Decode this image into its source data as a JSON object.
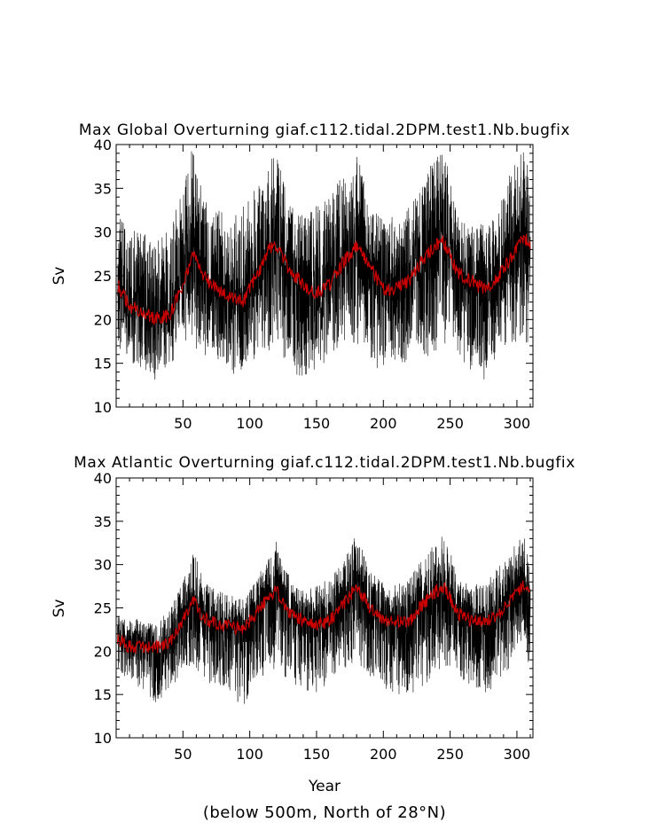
{
  "figure": {
    "footnote": "(below 500m, North of 28°N)"
  },
  "chart_data": [
    {
      "type": "line",
      "title": "Max Global Overturning giaf.c112.tidal.2DPM.test1.Nb.bugfix",
      "xlabel": "",
      "ylabel": "Sv",
      "xlim": [
        0,
        312
      ],
      "ylim": [
        10,
        40
      ],
      "xticks": [
        50,
        100,
        150,
        200,
        250,
        300
      ],
      "yticks": [
        10,
        15,
        20,
        25,
        30,
        35,
        40
      ],
      "series": [
        {
          "name": "raw",
          "color": "#000000",
          "x": [
            1,
            10,
            20,
            30,
            40,
            50,
            57,
            65,
            75,
            85,
            95,
            105,
            115,
            120,
            130,
            140,
            150,
            160,
            170,
            180,
            190,
            200,
            210,
            220,
            230,
            240,
            245,
            255,
            265,
            275,
            285,
            295,
            305,
            310
          ],
          "upper": [
            32,
            30.5,
            30,
            29,
            30.5,
            36,
            40,
            34,
            33,
            32,
            33,
            35.5,
            38,
            40,
            33,
            32,
            33,
            34,
            37,
            39.5,
            33,
            31.5,
            32,
            33,
            37,
            39,
            40,
            32,
            31,
            31,
            33,
            37,
            40,
            36
          ],
          "lower": [
            17,
            15,
            14.5,
            13,
            15,
            16,
            17,
            16,
            15.5,
            13.5,
            14,
            15.5,
            16.5,
            17,
            14.5,
            13,
            14,
            15.5,
            17.5,
            16.5,
            15.5,
            13.5,
            15,
            15,
            15.5,
            16.5,
            17,
            16,
            14,
            13,
            15.5,
            17,
            18,
            16
          ]
        },
        {
          "name": "mean",
          "color": "#cc0000",
          "x": [
            1,
            10,
            20,
            30,
            40,
            50,
            57,
            65,
            75,
            85,
            95,
            105,
            115,
            120,
            130,
            140,
            150,
            160,
            170,
            180,
            190,
            200,
            210,
            220,
            230,
            240,
            245,
            255,
            265,
            275,
            285,
            295,
            305,
            310
          ],
          "values": [
            24,
            21.5,
            21,
            20,
            20.5,
            24,
            27.5,
            25,
            23.5,
            22.5,
            22,
            25,
            28,
            28.5,
            25.5,
            24,
            23,
            24,
            26.5,
            28.5,
            26,
            23.5,
            23.5,
            24.5,
            27,
            28.5,
            29,
            25.5,
            24.5,
            23.5,
            24.5,
            27,
            29.5,
            28.5
          ]
        }
      ]
    },
    {
      "type": "line",
      "title": "Max Atlantic Overturning giaf.c112.tidal.2DPM.test1.Nb.bugfix",
      "xlabel": "Year",
      "ylabel": "Sv",
      "xlim": [
        0,
        312
      ],
      "ylim": [
        10,
        40
      ],
      "xticks": [
        50,
        100,
        150,
        200,
        250,
        300
      ],
      "yticks": [
        10,
        15,
        20,
        25,
        30,
        35,
        40
      ],
      "series": [
        {
          "name": "raw",
          "color": "#000000",
          "x": [
            1,
            10,
            20,
            30,
            40,
            50,
            57,
            65,
            75,
            85,
            95,
            105,
            115,
            120,
            130,
            140,
            150,
            160,
            170,
            180,
            190,
            200,
            210,
            220,
            230,
            240,
            245,
            255,
            265,
            275,
            285,
            295,
            305,
            310
          ],
          "upper": [
            24,
            24,
            23.5,
            23,
            25,
            28,
            32,
            28.5,
            27,
            26.5,
            26,
            28.5,
            31,
            33,
            28.5,
            27,
            27.5,
            28.5,
            30.5,
            34,
            29.5,
            28,
            28,
            28.5,
            31,
            33,
            34,
            29,
            28,
            28,
            29.5,
            31.5,
            34,
            30
          ],
          "lower": [
            18,
            16.5,
            15.5,
            14,
            15.5,
            17.5,
            18.5,
            17,
            15.5,
            15,
            13.5,
            16.5,
            17.5,
            18,
            16.5,
            15.5,
            15,
            16.5,
            18,
            18.5,
            16.5,
            15.5,
            15,
            15,
            16,
            17.5,
            18,
            17,
            16,
            14.5,
            16.5,
            18,
            19,
            18.5
          ]
        },
        {
          "name": "mean",
          "color": "#cc0000",
          "x": [
            1,
            10,
            20,
            30,
            40,
            50,
            57,
            65,
            75,
            85,
            95,
            105,
            115,
            120,
            130,
            140,
            150,
            160,
            170,
            180,
            190,
            200,
            210,
            220,
            230,
            240,
            245,
            255,
            265,
            275,
            285,
            295,
            305,
            310
          ],
          "values": [
            21.5,
            20.5,
            20.5,
            20.5,
            21,
            23.5,
            26,
            24,
            23,
            23,
            22.5,
            24.5,
            26.5,
            27,
            24.5,
            23.5,
            23,
            23.5,
            25.5,
            27.5,
            25,
            23.5,
            23.5,
            23.5,
            25.5,
            27,
            27.5,
            24.5,
            23.5,
            23.5,
            24,
            26,
            27.5,
            26.5
          ]
        }
      ]
    }
  ]
}
